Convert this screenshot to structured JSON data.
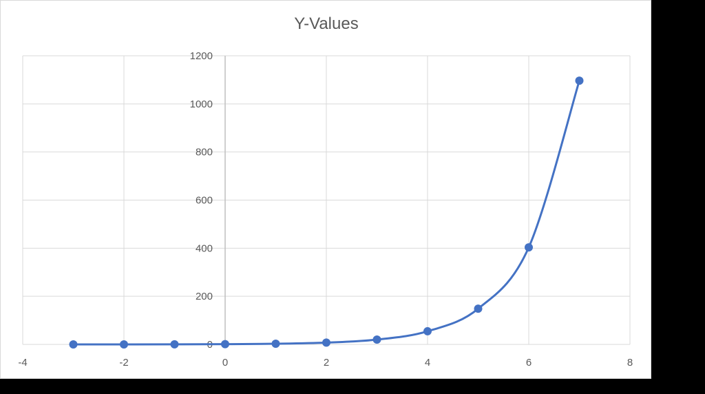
{
  "chart_data": {
    "type": "scatter",
    "title": "Y-Values",
    "xlabel": "",
    "ylabel": "",
    "xlim": [
      -4,
      8
    ],
    "ylim": [
      0,
      1200
    ],
    "xticks": [
      -4,
      -2,
      0,
      2,
      4,
      6,
      8
    ],
    "yticks": [
      0,
      200,
      400,
      600,
      800,
      1000,
      1200
    ],
    "grid": true,
    "legend": null,
    "smooth_line": true,
    "marker": "circle",
    "series": [
      {
        "name": "Y-Values",
        "color": "#4472C4",
        "x": [
          -3,
          -2,
          -1,
          0,
          1,
          2,
          3,
          4,
          5,
          6,
          7
        ],
        "y": [
          0.05,
          0.14,
          0.37,
          1,
          2.72,
          7.39,
          20.09,
          54.6,
          148.41,
          403.43,
          1096.63
        ]
      }
    ]
  },
  "colors": {
    "background": "#ffffff",
    "gridline": "#d9d9d9",
    "axis_text": "#595959",
    "series": "#4472C4"
  }
}
